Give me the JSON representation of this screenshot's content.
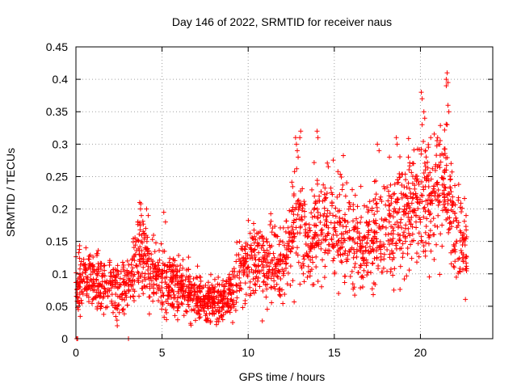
{
  "chart_data": {
    "type": "scatter",
    "title": "Day 146 of 2022, SRMTID for receiver naus",
    "xlabel": "GPS time / hours",
    "ylabel": "SRMTID / TECUs",
    "xlim": [
      0,
      24.2
    ],
    "ylim": [
      0,
      0.45
    ],
    "xticks": [
      0,
      5,
      10,
      15,
      20
    ],
    "xtick_labels": [
      "0",
      "5",
      "10",
      "15",
      "20"
    ],
    "yticks": [
      0,
      0.05,
      0.1,
      0.15,
      0.2,
      0.25,
      0.3,
      0.35,
      0.4,
      0.45
    ],
    "ytick_labels": [
      "0",
      "0.05",
      "0.1",
      "0.15",
      "0.2",
      "0.25",
      "0.3",
      "0.35",
      "0.4",
      "0.45"
    ],
    "grid": true,
    "marker": "plus",
    "color": "#ff0000",
    "trend": [
      [
        0.0,
        0.09
      ],
      [
        1.0,
        0.09
      ],
      [
        2.0,
        0.08
      ],
      [
        3.0,
        0.085
      ],
      [
        3.8,
        0.13
      ],
      [
        4.5,
        0.1
      ],
      [
        5.5,
        0.09
      ],
      [
        6.5,
        0.07
      ],
      [
        7.5,
        0.06
      ],
      [
        8.5,
        0.06
      ],
      [
        9.5,
        0.1
      ],
      [
        10.0,
        0.12
      ],
      [
        11.0,
        0.11
      ],
      [
        12.0,
        0.12
      ],
      [
        12.8,
        0.19
      ],
      [
        13.5,
        0.15
      ],
      [
        14.5,
        0.18
      ],
      [
        15.5,
        0.17
      ],
      [
        16.5,
        0.14
      ],
      [
        17.5,
        0.16
      ],
      [
        18.5,
        0.18
      ],
      [
        19.5,
        0.2
      ],
      [
        20.5,
        0.22
      ],
      [
        21.5,
        0.24
      ],
      [
        22.0,
        0.16
      ],
      [
        22.7,
        0.14
      ]
    ],
    "points": [
      [
        0.05,
        0.0
      ],
      [
        0.1,
        0.0
      ],
      [
        3.05,
        0.0
      ],
      [
        20.05,
        0.38
      ],
      [
        20.1,
        0.37
      ],
      [
        20.2,
        0.35
      ],
      [
        20.25,
        0.34
      ],
      [
        20.1,
        0.33
      ],
      [
        21.5,
        0.4
      ],
      [
        21.55,
        0.41
      ],
      [
        21.6,
        0.395
      ],
      [
        21.5,
        0.39
      ],
      [
        21.6,
        0.36
      ],
      [
        21.65,
        0.35
      ],
      [
        21.55,
        0.33
      ],
      [
        21.5,
        0.26
      ],
      [
        21.0,
        0.31
      ],
      [
        21.05,
        0.3
      ],
      [
        20.6,
        0.31
      ],
      [
        20.3,
        0.29
      ],
      [
        12.75,
        0.31
      ],
      [
        12.8,
        0.3
      ],
      [
        12.85,
        0.29
      ],
      [
        12.9,
        0.28
      ],
      [
        13.0,
        0.31
      ],
      [
        13.05,
        0.32
      ],
      [
        14.0,
        0.32
      ],
      [
        14.05,
        0.31
      ],
      [
        17.5,
        0.3
      ],
      [
        17.6,
        0.29
      ],
      [
        18.6,
        0.31
      ],
      [
        18.65,
        0.3
      ],
      [
        18.2,
        0.28
      ],
      [
        19.3,
        0.28
      ],
      [
        19.6,
        0.27
      ],
      [
        3.7,
        0.21
      ],
      [
        3.75,
        0.2
      ],
      [
        3.8,
        0.19
      ],
      [
        3.6,
        0.18
      ],
      [
        4.1,
        0.2
      ],
      [
        4.2,
        0.19
      ],
      [
        4.05,
        0.17
      ],
      [
        5.1,
        0.195
      ],
      [
        5.2,
        0.18
      ],
      [
        7.8,
        0.025
      ],
      [
        8.2,
        0.03
      ],
      [
        9.1,
        0.025
      ],
      [
        2.4,
        0.02
      ]
    ]
  }
}
